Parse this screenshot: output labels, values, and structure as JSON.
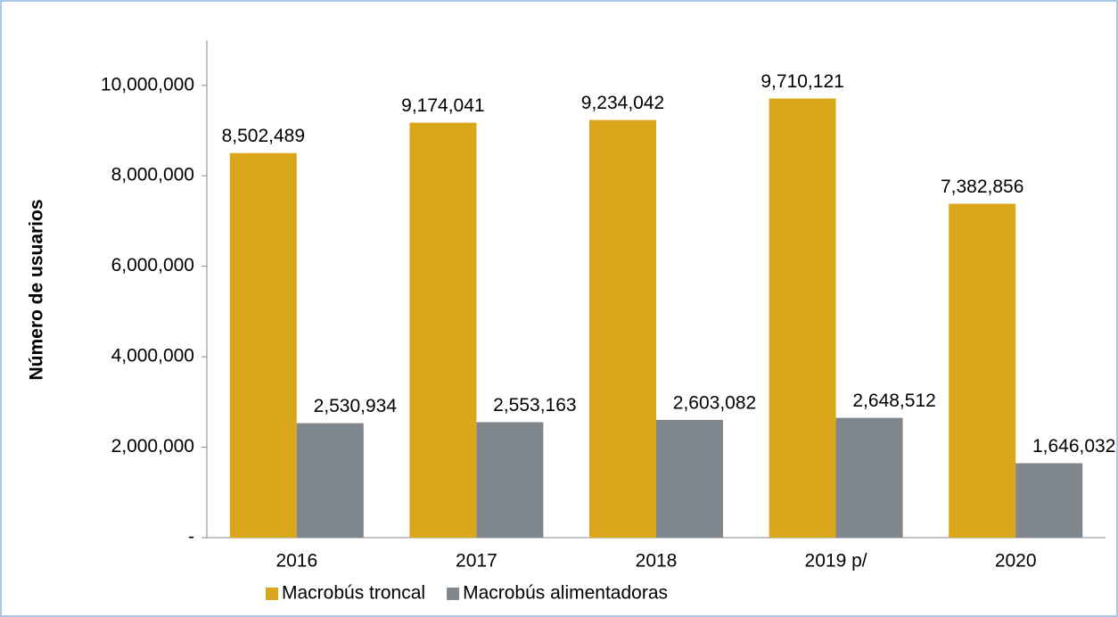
{
  "chart_data": {
    "type": "bar",
    "y_label": "Número de usuarios",
    "categories": [
      "2016",
      "2017",
      "2018",
      "2019 p/",
      "2020"
    ],
    "series": [
      {
        "name": "Macrobús troncal",
        "color": "#daa61b",
        "values": [
          8502489,
          9174041,
          9234042,
          9710121,
          7382856
        ],
        "value_labels": [
          "8,502,489",
          "9,174,041",
          "9,234,042",
          "9,710,121",
          "7,382,856"
        ]
      },
      {
        "name": "Macrobús alimentadoras",
        "color": "#7f868c",
        "values": [
          2530934,
          2553163,
          2603082,
          2648512,
          1646032
        ],
        "value_labels": [
          "2,530,934",
          "2,553,163",
          "2,603,082",
          "2,648,512",
          "1,646,032"
        ]
      }
    ],
    "ylim": [
      0,
      11000000
    ],
    "yticks": [
      {
        "value": 0,
        "label": "-"
      },
      {
        "value": 2000000,
        "label": "2,000,000"
      },
      {
        "value": 4000000,
        "label": "4,000,000"
      },
      {
        "value": 6000000,
        "label": "6,000,000"
      },
      {
        "value": 8000000,
        "label": "8,000,000"
      },
      {
        "value": 10000000,
        "label": "10,000,000"
      }
    ],
    "legend": "bottom",
    "grid": false
  }
}
